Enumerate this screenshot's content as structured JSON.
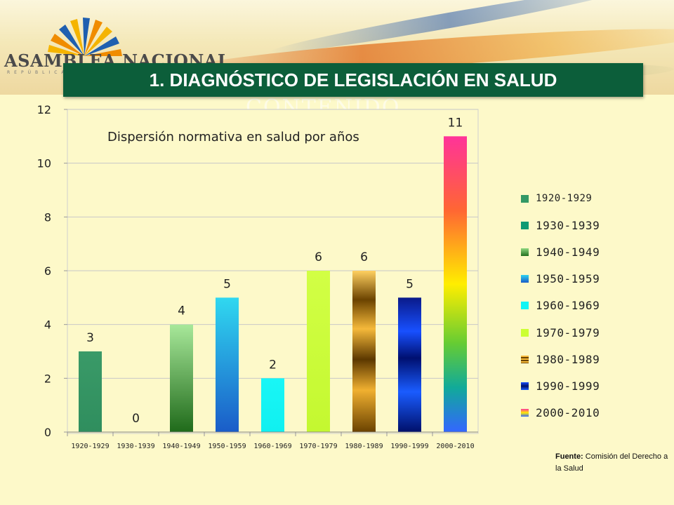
{
  "header": {
    "logo_text": "ASAMBLEA NACIONAL",
    "logo_subtext": "REPÚBLICA",
    "title": "1. DIAGNÓSTICO DE LEGISLACIÓN EN SALUD",
    "ghost_text": "CONTENIDO"
  },
  "chart_data": {
    "type": "bar",
    "title": "Dispersión normativa en salud por años",
    "xlabel": "",
    "ylabel": "",
    "ylim": [
      0,
      12
    ],
    "yticks": [
      0,
      2,
      4,
      6,
      8,
      10,
      12
    ],
    "grid": true,
    "legend_position": "right",
    "categories": [
      "1920-1929",
      "1930-1939",
      "1940-1949",
      "1950-1959",
      "1960-1969",
      "1970-1979",
      "1980-1989",
      "1990-1999",
      "2000-2010"
    ],
    "values": [
      3,
      0,
      4,
      5,
      2,
      6,
      6,
      5,
      11
    ],
    "data_labels": [
      "3",
      "0",
      "4",
      "5",
      "2",
      "6",
      "6",
      "5",
      "11"
    ],
    "legend": [
      "1920-1929",
      "1930-1939",
      "1940-1949",
      "1950-1959",
      "1960-1969",
      "1970-1979",
      "1980-1989",
      "1990-1999",
      "2000-2010"
    ],
    "colors": [
      "#339966",
      "#0e9a73",
      "#2f7d2a",
      "#1f8fe0",
      "#11f5f5",
      "#ccff33",
      "#a8700a",
      "#0a2fd8",
      "#ff3399"
    ]
  },
  "source": {
    "label": "Fuente:",
    "text": "Comisión del Derecho a la Salud"
  }
}
